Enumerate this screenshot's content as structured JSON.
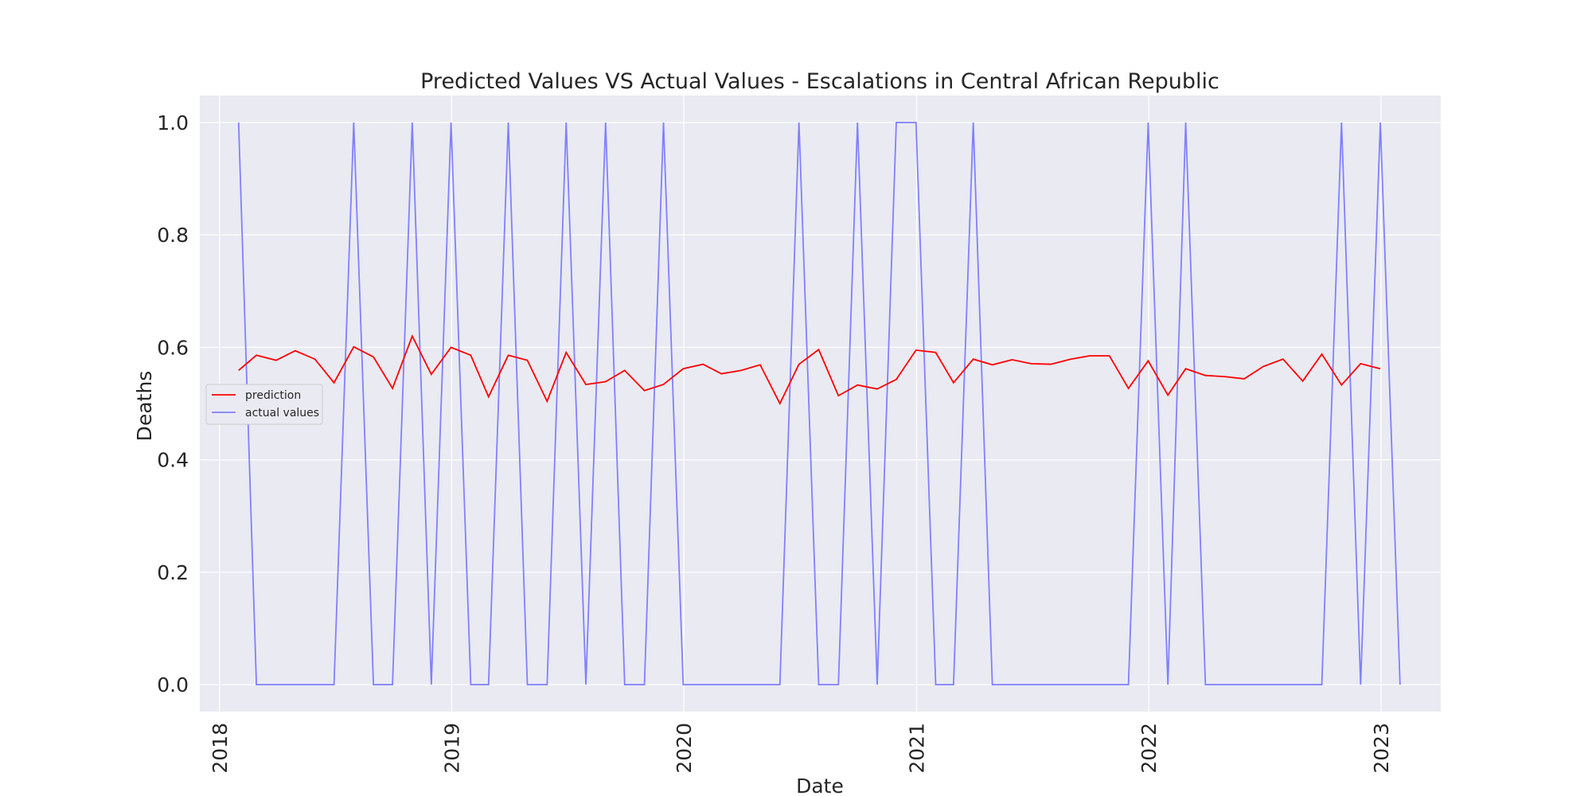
{
  "chart_data": {
    "type": "line",
    "title": "Predicted Values VS Actual Values - Escalations in Central African Republic",
    "xlabel": "Date",
    "ylabel": "Deaths",
    "xlim": [
      "2017-12-01",
      "2023-04-05"
    ],
    "ylim": [
      -0.048,
      1.048
    ],
    "grid": true,
    "legend_position": "center-left",
    "x_ticks": [
      "2018",
      "2019",
      "2020",
      "2021",
      "2022",
      "2023"
    ],
    "y_ticks": [
      "0.0",
      "0.2",
      "0.4",
      "0.6",
      "0.8",
      "1.0"
    ],
    "series": [
      {
        "name": "prediction",
        "color": "#ff0000",
        "x": [
          "2018-01-31",
          "2018-02-28",
          "2018-03-31",
          "2018-04-30",
          "2018-05-31",
          "2018-06-30",
          "2018-07-31",
          "2018-08-31",
          "2018-09-30",
          "2018-10-31",
          "2018-11-30",
          "2018-12-31",
          "2019-01-31",
          "2019-02-28",
          "2019-03-31",
          "2019-04-30",
          "2019-05-31",
          "2019-06-30",
          "2019-07-31",
          "2019-08-31",
          "2019-09-30",
          "2019-10-31",
          "2019-11-30",
          "2019-12-31",
          "2020-01-31",
          "2020-02-29",
          "2020-03-31",
          "2020-04-30",
          "2020-05-31",
          "2020-06-30",
          "2020-07-31",
          "2020-08-31",
          "2020-09-30",
          "2020-10-31",
          "2020-11-30",
          "2020-12-31",
          "2021-01-31",
          "2021-02-28",
          "2021-03-31",
          "2021-04-30",
          "2021-05-31",
          "2021-06-30",
          "2021-07-31",
          "2021-08-31",
          "2021-09-30",
          "2021-10-31",
          "2021-11-30",
          "2021-12-31",
          "2022-01-31",
          "2022-02-28",
          "2022-03-31",
          "2022-04-30",
          "2022-05-31",
          "2022-06-30",
          "2022-07-31",
          "2022-08-31",
          "2022-09-30",
          "2022-10-31",
          "2022-11-30",
          "2022-12-31"
        ],
        "values": [
          0.559,
          0.586,
          0.577,
          0.594,
          0.579,
          0.537,
          0.601,
          0.583,
          0.527,
          0.62,
          0.552,
          0.6,
          0.586,
          0.512,
          0.586,
          0.577,
          0.504,
          0.591,
          0.534,
          0.539,
          0.559,
          0.523,
          0.534,
          0.562,
          0.57,
          0.553,
          0.559,
          0.569,
          0.5,
          0.57,
          0.596,
          0.514,
          0.533,
          0.526,
          0.543,
          0.595,
          0.591,
          0.537,
          0.579,
          0.569,
          0.578,
          0.571,
          0.57,
          0.579,
          0.585,
          0.585,
          0.527,
          0.576,
          0.515,
          0.562,
          0.55,
          0.548,
          0.544,
          0.566,
          0.579,
          0.54,
          0.588,
          0.533,
          0.571,
          0.562
        ]
      },
      {
        "name": "actual values",
        "color": "#8080ff",
        "x": [
          "2018-01-31",
          "2018-02-28",
          "2018-03-31",
          "2018-04-30",
          "2018-05-31",
          "2018-06-30",
          "2018-07-31",
          "2018-08-31",
          "2018-09-30",
          "2018-10-31",
          "2018-11-30",
          "2018-12-31",
          "2019-01-31",
          "2019-02-28",
          "2019-03-31",
          "2019-04-30",
          "2019-05-31",
          "2019-06-30",
          "2019-07-31",
          "2019-08-31",
          "2019-09-30",
          "2019-10-31",
          "2019-11-30",
          "2019-12-31",
          "2020-01-31",
          "2020-02-29",
          "2020-03-31",
          "2020-04-30",
          "2020-05-31",
          "2020-06-30",
          "2020-07-31",
          "2020-08-31",
          "2020-09-30",
          "2020-10-31",
          "2020-11-30",
          "2020-12-31",
          "2021-01-31",
          "2021-02-28",
          "2021-03-31",
          "2021-04-30",
          "2021-05-31",
          "2021-06-30",
          "2021-07-31",
          "2021-08-31",
          "2021-09-30",
          "2021-10-31",
          "2021-11-30",
          "2021-12-31",
          "2022-01-31",
          "2022-02-28",
          "2022-03-31",
          "2022-04-30",
          "2022-05-31",
          "2022-06-30",
          "2022-07-31",
          "2022-08-31",
          "2022-09-30",
          "2022-10-31",
          "2022-11-30",
          "2022-12-31",
          "2023-01-31"
        ],
        "values": [
          1,
          0,
          0,
          0,
          0,
          0,
          1,
          0,
          0,
          1,
          0,
          1,
          0,
          0,
          1,
          0,
          0,
          1,
          0,
          1,
          0,
          0,
          1,
          0,
          0,
          0,
          0,
          0,
          0,
          1,
          0,
          0,
          1,
          0,
          1,
          1,
          0,
          0,
          1,
          0,
          0,
          0,
          0,
          0,
          0,
          0,
          0,
          1,
          0,
          1,
          0,
          0,
          0,
          0,
          0,
          0,
          0,
          1,
          0,
          1,
          0
        ]
      }
    ]
  }
}
